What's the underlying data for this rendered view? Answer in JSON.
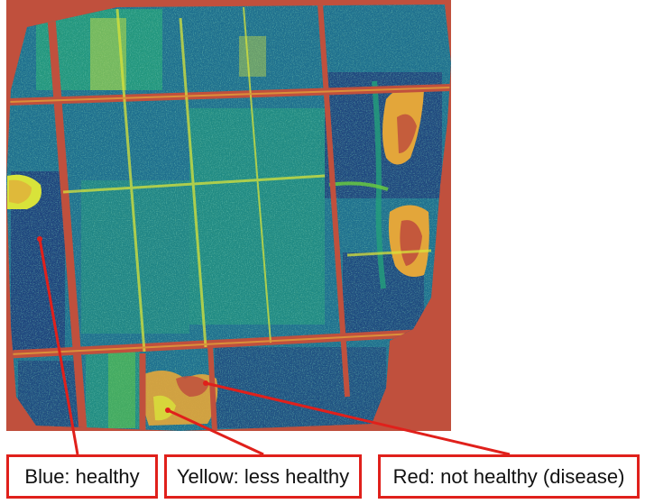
{
  "image": {
    "subject": "aerial-ndvi-crop-health-map",
    "background_color": "#c0503d",
    "field_colors": [
      "#1f3d7a",
      "#1e6f8e",
      "#23a07a",
      "#6ccf3c",
      "#d8e33a",
      "#e3a63a",
      "#c0503d"
    ]
  },
  "legend": {
    "blue": {
      "text": "Blue: healthy",
      "color": "#e0201b"
    },
    "yellow": {
      "text": "Yellow: less healthy",
      "color": "#e0201b"
    },
    "red": {
      "text": "Red: not healthy (disease)",
      "color": "#e0201b"
    }
  }
}
